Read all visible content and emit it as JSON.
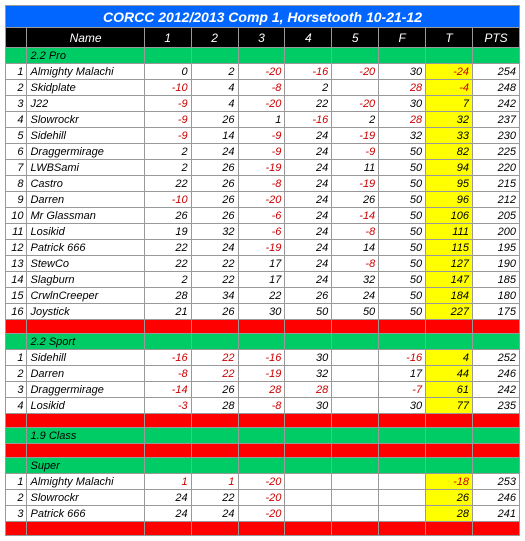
{
  "title": "CORCC 2012/2013  Comp 1, Horsetooth 10-21-12",
  "headers": [
    "",
    "Name",
    "1",
    "2",
    "3",
    "4",
    "5",
    "F",
    "T",
    "PTS"
  ],
  "colors": {
    "title_bg": "#0066ff",
    "header_bg": "#000000",
    "section_bg": "#00cc66",
    "blank_bg": "#ff0000",
    "highlight_bg": "#ffff00",
    "negative": "#cc0000"
  },
  "sections": [
    {
      "label": "2.2 Pro",
      "rows": [
        {
          "n": 1,
          "name": "Almighty Malachi",
          "v": [
            0,
            2,
            -20,
            -16,
            -20
          ],
          "f": 30,
          "t": -24,
          "pts": 254
        },
        {
          "n": 2,
          "name": "Skidplate",
          "v": [
            -10,
            4,
            -8,
            2,
            "",
            "neg"
          ],
          "f": 28,
          "t": -4,
          "pts": 248,
          "fneg": true,
          "v1neg": true
        },
        {
          "n": 3,
          "name": "J22",
          "v": [
            -9,
            4,
            -20,
            22,
            -20
          ],
          "f": 30,
          "t": 7,
          "pts": 242
        },
        {
          "n": 4,
          "name": "Slowrockr",
          "v": [
            -9,
            26,
            1,
            -16,
            2
          ],
          "f": 28,
          "t": 32,
          "pts": 237,
          "fneg": true
        },
        {
          "n": 5,
          "name": "Sidehill",
          "v": [
            -9,
            14,
            -9,
            24,
            -19
          ],
          "f": 32,
          "t": 33,
          "pts": 230
        },
        {
          "n": 6,
          "name": "Draggermirage",
          "v": [
            2,
            24,
            -9,
            24,
            -9
          ],
          "f": 50,
          "t": 82,
          "pts": 225
        },
        {
          "n": 7,
          "name": "LWBSami",
          "v": [
            2,
            26,
            -19,
            24,
            11
          ],
          "f": 50,
          "t": 94,
          "pts": 220
        },
        {
          "n": 8,
          "name": "Castro",
          "v": [
            22,
            26,
            -8,
            24,
            -19
          ],
          "f": 50,
          "t": 95,
          "pts": 215
        },
        {
          "n": 9,
          "name": "Darren",
          "v": [
            -10,
            26,
            -20,
            24,
            26
          ],
          "f": 50,
          "t": 96,
          "pts": 212
        },
        {
          "n": 10,
          "name": "Mr Glassman",
          "v": [
            26,
            26,
            -6,
            24,
            -14
          ],
          "f": 50,
          "t": 106,
          "pts": 205
        },
        {
          "n": 11,
          "name": "Losikid",
          "v": [
            19,
            32,
            -6,
            24,
            -8
          ],
          "f": 50,
          "t": 111,
          "pts": 200
        },
        {
          "n": 12,
          "name": "Patrick 666",
          "v": [
            22,
            24,
            -19,
            24,
            14
          ],
          "f": 50,
          "t": 115,
          "pts": 195
        },
        {
          "n": 13,
          "name": "StewCo",
          "v": [
            22,
            22,
            17,
            24,
            -8
          ],
          "f": 50,
          "t": 127,
          "pts": 190
        },
        {
          "n": 14,
          "name": "Slagburn",
          "v": [
            2,
            22,
            17,
            24,
            32
          ],
          "f": 50,
          "t": 147,
          "pts": 185
        },
        {
          "n": 15,
          "name": "CrwlnCreeper",
          "v": [
            28,
            34,
            22,
            26,
            24
          ],
          "f": 50,
          "t": 184,
          "pts": 180
        },
        {
          "n": 16,
          "name": "Joystick",
          "v": [
            21,
            26,
            30,
            50,
            50
          ],
          "f": 50,
          "t": 227,
          "pts": 175
        }
      ]
    },
    {
      "label": "2.2 Sport",
      "rows": [
        {
          "n": 1,
          "name": "Sidehill",
          "v": [
            -16,
            22,
            -16,
            30,
            ""
          ],
          "f": -16,
          "t": 4,
          "pts": 252,
          "v2pos": true
        },
        {
          "n": 2,
          "name": "Darren",
          "v": [
            -8,
            22,
            -19,
            32,
            ""
          ],
          "f": 17,
          "t": 44,
          "pts": 246,
          "v2pos": true
        },
        {
          "n": 3,
          "name": "Draggermirage",
          "v": [
            -14,
            26,
            28,
            28,
            ""
          ],
          "f": -7,
          "t": 61,
          "pts": 242,
          "v3neg": true,
          "v4neg": true
        },
        {
          "n": 4,
          "name": "Losikid",
          "v": [
            -3,
            28,
            -8,
            30,
            ""
          ],
          "f": 30,
          "t": 77,
          "pts": 235
        }
      ]
    },
    {
      "label": "1.9 Class",
      "rows": []
    },
    {
      "label": "Super",
      "rows": [
        {
          "n": 1,
          "name": "Almighty Malachi",
          "v": [
            1,
            1,
            -20,
            "",
            ""
          ],
          "f": "",
          "t": -18,
          "pts": 253,
          "v1neg": true,
          "v2neg": true
        },
        {
          "n": 2,
          "name": "Slowrockr",
          "v": [
            24,
            22,
            -20,
            "",
            ""
          ],
          "f": "",
          "t": 26,
          "pts": 246
        },
        {
          "n": 3,
          "name": "Patrick 666",
          "v": [
            24,
            24,
            -20,
            "",
            ""
          ],
          "f": "",
          "t": 28,
          "pts": 241
        }
      ]
    }
  ]
}
